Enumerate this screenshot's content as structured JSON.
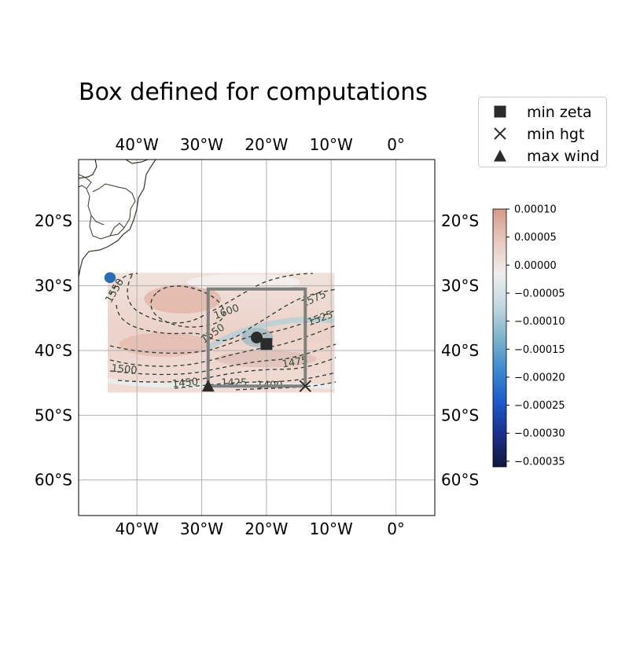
{
  "title": "Box defined for computations",
  "map": {
    "projection": "PlateCarree",
    "extent_lon": [
      -49,
      6
    ],
    "extent_lat": [
      -65.5,
      -10.5
    ],
    "lon_ticks": [
      {
        "value": -40,
        "label": "40°W"
      },
      {
        "value": -30,
        "label": "30°W"
      },
      {
        "value": -20,
        "label": "20°W"
      },
      {
        "value": -10,
        "label": "10°W"
      },
      {
        "value": 0,
        "label": "0°"
      }
    ],
    "lat_ticks": [
      {
        "value": -20,
        "label": "20°S"
      },
      {
        "value": -30,
        "label": "30°S"
      },
      {
        "value": -40,
        "label": "40°S"
      },
      {
        "value": -50,
        "label": "50°S"
      },
      {
        "value": -60,
        "label": "60°S"
      }
    ],
    "gridlines": true,
    "field_extent": {
      "lon": [
        -44.5,
        -9.5
      ],
      "lat": [
        -46.5,
        -28
      ]
    },
    "computation_box": {
      "lon": [
        -29,
        -14
      ],
      "lat": [
        -45.5,
        -30.5
      ],
      "color": "#808080"
    },
    "contour_labels": [
      {
        "text": "1550",
        "lon": -43,
        "lat": -31,
        "angle": -60
      },
      {
        "text": "1600",
        "lon": -26,
        "lat": -34.5,
        "angle": -20
      },
      {
        "text": "1550",
        "lon": -28,
        "lat": -37.8,
        "angle": -35
      },
      {
        "text": "1575",
        "lon": -12.5,
        "lat": -32.5,
        "angle": -25
      },
      {
        "text": "1525",
        "lon": -11.5,
        "lat": -35.5,
        "angle": -20
      },
      {
        "text": "1475",
        "lon": -15.5,
        "lat": -42.3,
        "angle": -10
      },
      {
        "text": "1500",
        "lon": -42,
        "lat": -43.4,
        "angle": 5
      },
      {
        "text": "1450",
        "lon": -32.5,
        "lat": -45.5,
        "angle": -5
      },
      {
        "text": "1425",
        "lon": -25,
        "lat": -45.5,
        "angle": 0
      },
      {
        "text": "1400",
        "lon": -19.5,
        "lat": -45.9,
        "angle": 0
      }
    ],
    "markers": {
      "min_zeta": {
        "lon": -20,
        "lat": -39
      },
      "min_hgt": {
        "lon": -14,
        "lat": -45.5
      },
      "max_wind": {
        "lon": -29,
        "lat": -45.5
      },
      "center_dot": {
        "lon": -21.5,
        "lat": -38
      }
    }
  },
  "legend": {
    "items": [
      {
        "marker": "square",
        "label": "min zeta"
      },
      {
        "marker": "x",
        "label": "min hgt"
      },
      {
        "marker": "triangle",
        "label": "max wind"
      }
    ]
  },
  "colorbar": {
    "range": [
      -0.00036,
      0.0001
    ],
    "ticks": [
      {
        "value": 0.0001,
        "label": "0.00010"
      },
      {
        "value": 5e-05,
        "label": "0.00005"
      },
      {
        "value": 0.0,
        "label": "0.00000"
      },
      {
        "value": -5e-05,
        "label": "−0.00005"
      },
      {
        "value": -0.0001,
        "label": "−0.00010"
      },
      {
        "value": -0.00015,
        "label": "−0.00015"
      },
      {
        "value": -0.0002,
        "label": "−0.00020"
      },
      {
        "value": -0.00025,
        "label": "−0.00025"
      },
      {
        "value": -0.0003,
        "label": "−0.00030"
      },
      {
        "value": -0.00035,
        "label": "−0.00035"
      }
    ],
    "colors": [
      "#11183d",
      "#1b2f8a",
      "#1c59c8",
      "#3c8ad0",
      "#7eb3cc",
      "#c4d8df",
      "#eeeeee",
      "#e9c9c0",
      "#d49a8a"
    ]
  }
}
